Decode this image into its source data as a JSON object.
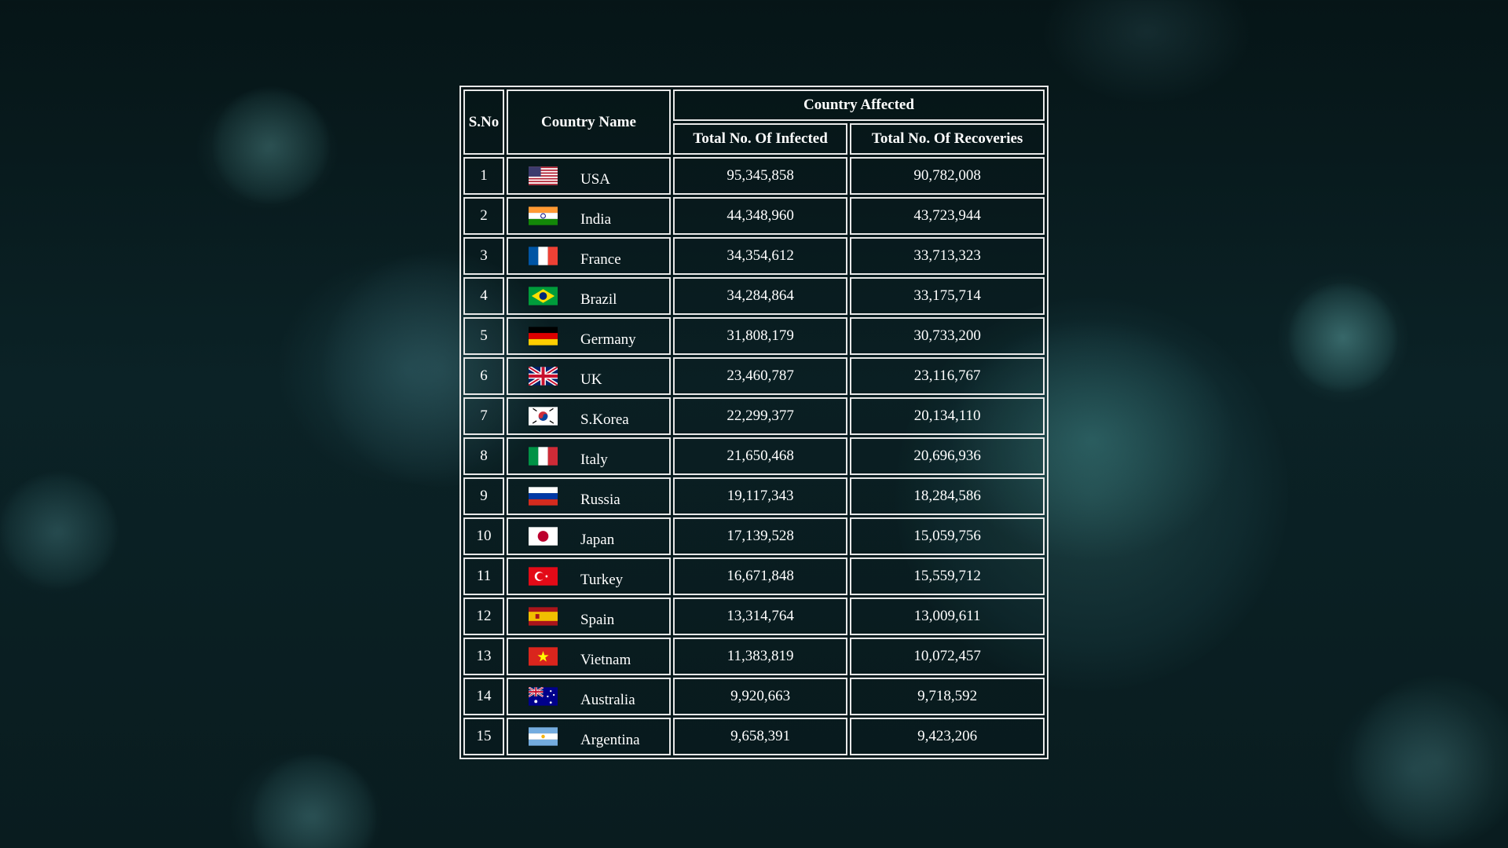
{
  "table": {
    "headers": {
      "sno": "S.No",
      "country": "Country Name",
      "affected_group": "Country Affected",
      "infected": "Total No. Of Infected",
      "recoveries": "Total No. Of Recoveries"
    },
    "rows": [
      {
        "sno": "1",
        "country": "USA",
        "flag": "usa-flag",
        "infected": "95,345,858",
        "recoveries": "90,782,008"
      },
      {
        "sno": "2",
        "country": "India",
        "flag": "india-flag",
        "infected": "44,348,960",
        "recoveries": "43,723,944"
      },
      {
        "sno": "3",
        "country": "France",
        "flag": "france-flag",
        "infected": "34,354,612",
        "recoveries": "33,713,323"
      },
      {
        "sno": "4",
        "country": "Brazil",
        "flag": "brazil-flag",
        "infected": "34,284,864",
        "recoveries": "33,175,714"
      },
      {
        "sno": "5",
        "country": "Germany",
        "flag": "germany-flag",
        "infected": "31,808,179",
        "recoveries": "30,733,200"
      },
      {
        "sno": "6",
        "country": "UK",
        "flag": "uk-flag",
        "infected": "23,460,787",
        "recoveries": "23,116,767"
      },
      {
        "sno": "7",
        "country": "S.Korea",
        "flag": "south-korea-flag",
        "infected": "22,299,377",
        "recoveries": "20,134,110"
      },
      {
        "sno": "8",
        "country": "Italy",
        "flag": "italy-flag",
        "infected": "21,650,468",
        "recoveries": "20,696,936"
      },
      {
        "sno": "9",
        "country": "Russia",
        "flag": "russia-flag",
        "infected": "19,117,343",
        "recoveries": "18,284,586"
      },
      {
        "sno": "10",
        "country": "Japan",
        "flag": "japan-flag",
        "infected": "17,139,528",
        "recoveries": "15,059,756"
      },
      {
        "sno": "11",
        "country": "Turkey",
        "flag": "turkey-flag",
        "infected": "16,671,848",
        "recoveries": "15,559,712"
      },
      {
        "sno": "12",
        "country": "Spain",
        "flag": "spain-flag",
        "infected": "13,314,764",
        "recoveries": "13,009,611"
      },
      {
        "sno": "13",
        "country": "Vietnam",
        "flag": "vietnam-flag",
        "infected": "11,383,819",
        "recoveries": "10,072,457"
      },
      {
        "sno": "14",
        "country": "Australia",
        "flag": "australia-flag",
        "infected": "9,920,663",
        "recoveries": "9,718,592"
      },
      {
        "sno": "15",
        "country": "Argentina",
        "flag": "argentina-flag",
        "infected": "9,658,391",
        "recoveries": "9,423,206"
      }
    ]
  },
  "colors": {
    "background": "#0b2226",
    "text": "#ffffff",
    "border": "#e8e8e8"
  }
}
